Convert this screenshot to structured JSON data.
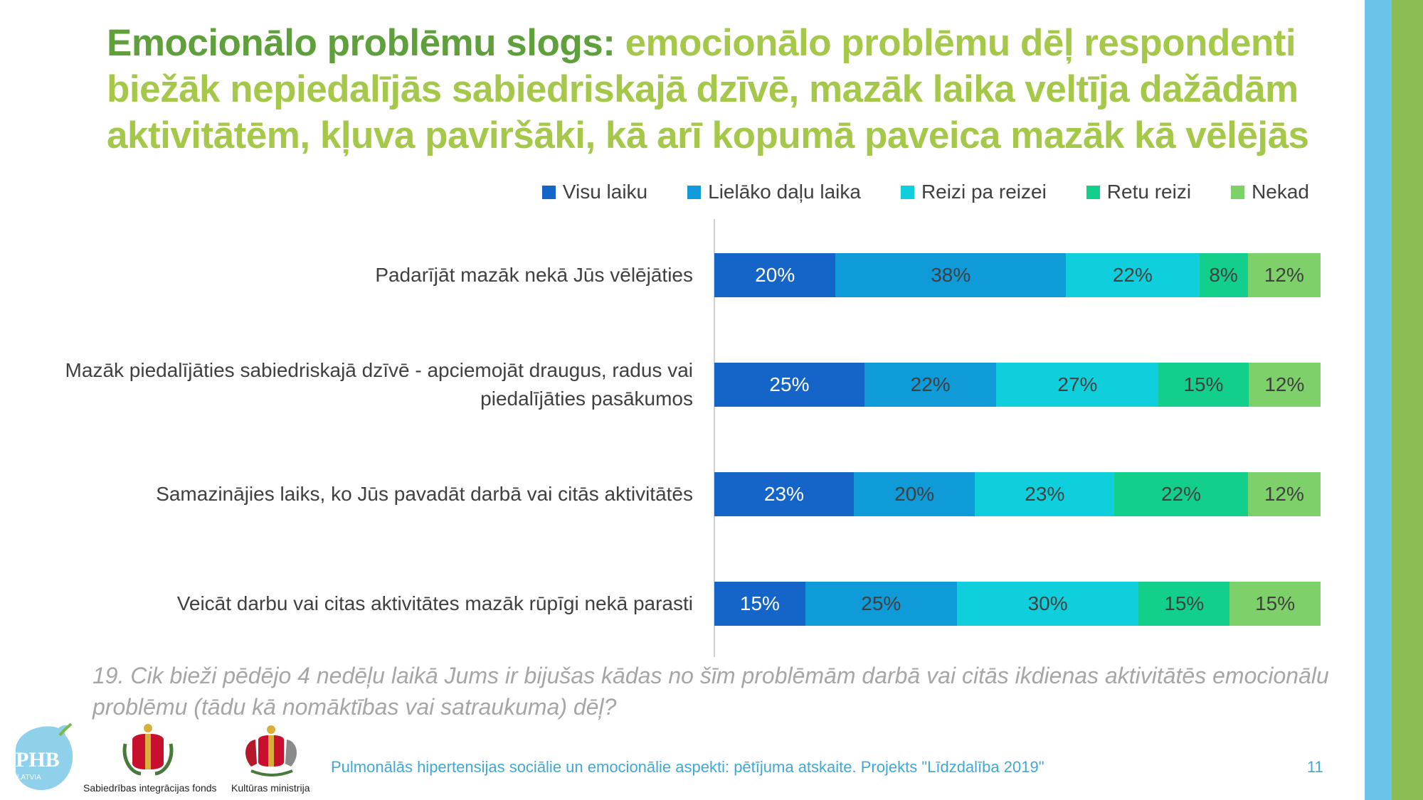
{
  "title": {
    "lead": "Emocionālo problēmu slogs:",
    "rest": " emocionālo problēmu dēļ respondenti biežāk nepiedalījās sabiedriskajā dzīvē, mazāk laika veltīja dažādām aktivitātēm, kļuva paviršāki, kā arī kopumā paveica mazāk kā vēlējās"
  },
  "chart_data": {
    "type": "bar",
    "orientation": "horizontal",
    "stacked": true,
    "value_format": "percent",
    "legend_position": "top-right",
    "categories": [
      "Padarījāt mazāk nekā Jūs vēlējāties",
      "Mazāk piedalījāties sabiedriskajā dzīvē - apciemojāt draugus, radus vai piedalījāties pasākumos",
      "Samazinājies laiks, ko Jūs pavadāt darbā vai citās aktivitātēs",
      "Veicāt darbu vai citas aktivitātes mazāk rūpīgi nekā parasti"
    ],
    "series": [
      {
        "name": "Visu laiku",
        "color": "#1565c8",
        "values": [
          20,
          25,
          23,
          15
        ]
      },
      {
        "name": "Lielāko daļu laika",
        "color": "#0f9ad8",
        "values": [
          38,
          22,
          20,
          25
        ]
      },
      {
        "name": "Reizi pa reizei",
        "color": "#0fcfdc",
        "values": [
          22,
          27,
          23,
          30
        ]
      },
      {
        "name": "Retu reizi",
        "color": "#12cf8c",
        "values": [
          8,
          15,
          22,
          15
        ]
      },
      {
        "name": "Nekad",
        "color": "#7ed06a",
        "values": [
          12,
          12,
          12,
          15
        ]
      }
    ]
  },
  "question": "19. Cik bieži pēdējo 4 nedēļu laikā Jums ir bijušas kādas no šīm problēmām darbā vai citās ikdienas aktivitātēs emocionālu problēmu (tādu kā nomāktības vai satraukuma) dēļ?",
  "footer": {
    "text": "Pulmonālās hipertensijas sociālie un emocionālie aspekti: pētījuma atskaite. Projekts \"Līdzdalība 2019\"",
    "page_number": "11"
  },
  "logos": {
    "phb": "PHB",
    "phb_sub": "LATVIA",
    "sif_caption": "Sabiedrības integrācijas fonds",
    "km_caption": "Kultūras ministrija"
  }
}
